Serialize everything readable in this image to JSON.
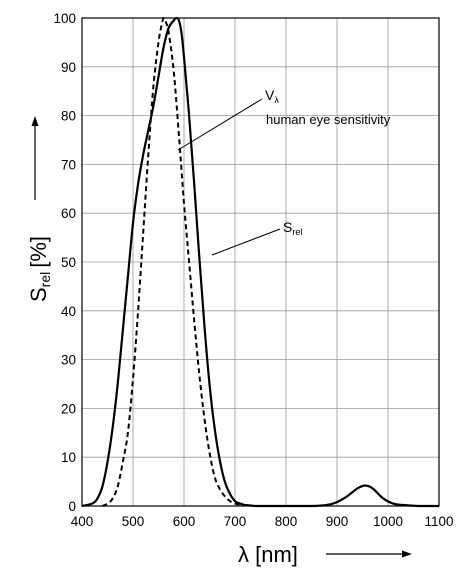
{
  "chart_data": {
    "type": "line",
    "xlabel": "λ [nm]",
    "ylabel_main": "S",
    "ylabel_sub": "rel",
    "ylabel_unit": "[%]",
    "xlim": [
      400,
      1100
    ],
    "ylim": [
      0,
      100
    ],
    "x_ticks": [
      400,
      500,
      600,
      700,
      800,
      900,
      1000,
      1100
    ],
    "y_ticks": [
      0,
      10,
      20,
      30,
      40,
      50,
      60,
      70,
      80,
      90,
      100
    ],
    "grid": true,
    "series": [
      {
        "label_main": "S",
        "label_sub": "rel",
        "style": "solid",
        "x": [
          400,
          420,
          430,
          440,
          450,
          460,
          470,
          480,
          490,
          500,
          510,
          520,
          530,
          540,
          550,
          560,
          570,
          580,
          585,
          590,
          595,
          600,
          610,
          620,
          630,
          640,
          650,
          660,
          670,
          680,
          690,
          700,
          710,
          720,
          730,
          740,
          760,
          800,
          850,
          880,
          900,
          920,
          940,
          955,
          970,
          990,
          1010,
          1030,
          1060,
          1100
        ],
        "y": [
          0,
          0.5,
          1.5,
          4,
          9,
          16,
          25,
          36,
          47,
          58,
          66,
          72,
          77,
          82,
          88,
          94,
          98,
          99.5,
          100,
          99.5,
          97,
          92,
          80,
          66,
          51,
          37,
          25,
          16,
          9.5,
          5,
          2.5,
          1,
          0.5,
          0.2,
          0.1,
          0,
          0,
          0,
          0,
          0.2,
          0.8,
          2,
          3.6,
          4.2,
          3.6,
          1.6,
          0.5,
          0.2,
          0,
          0
        ]
      },
      {
        "label_main": "V",
        "label_sub": "λ",
        "label_line2": "human eye sensitivity",
        "style": "dashed",
        "x": [
          440,
          450,
          460,
          470,
          480,
          490,
          500,
          510,
          520,
          530,
          540,
          550,
          555,
          560,
          565,
          570,
          580,
          590,
          600,
          610,
          620,
          630,
          640,
          650,
          660,
          670,
          680,
          690,
          700,
          710,
          720,
          730,
          740,
          760
        ],
        "y": [
          0,
          0.5,
          1.5,
          4,
          9,
          15,
          26,
          40,
          56,
          72,
          86,
          95,
          98,
          100,
          99,
          97,
          89,
          76,
          62,
          50,
          38,
          27,
          18,
          11,
          6,
          3.5,
          2,
          1,
          0.5,
          0.3,
          0.2,
          0.1,
          0,
          0
        ]
      }
    ]
  }
}
